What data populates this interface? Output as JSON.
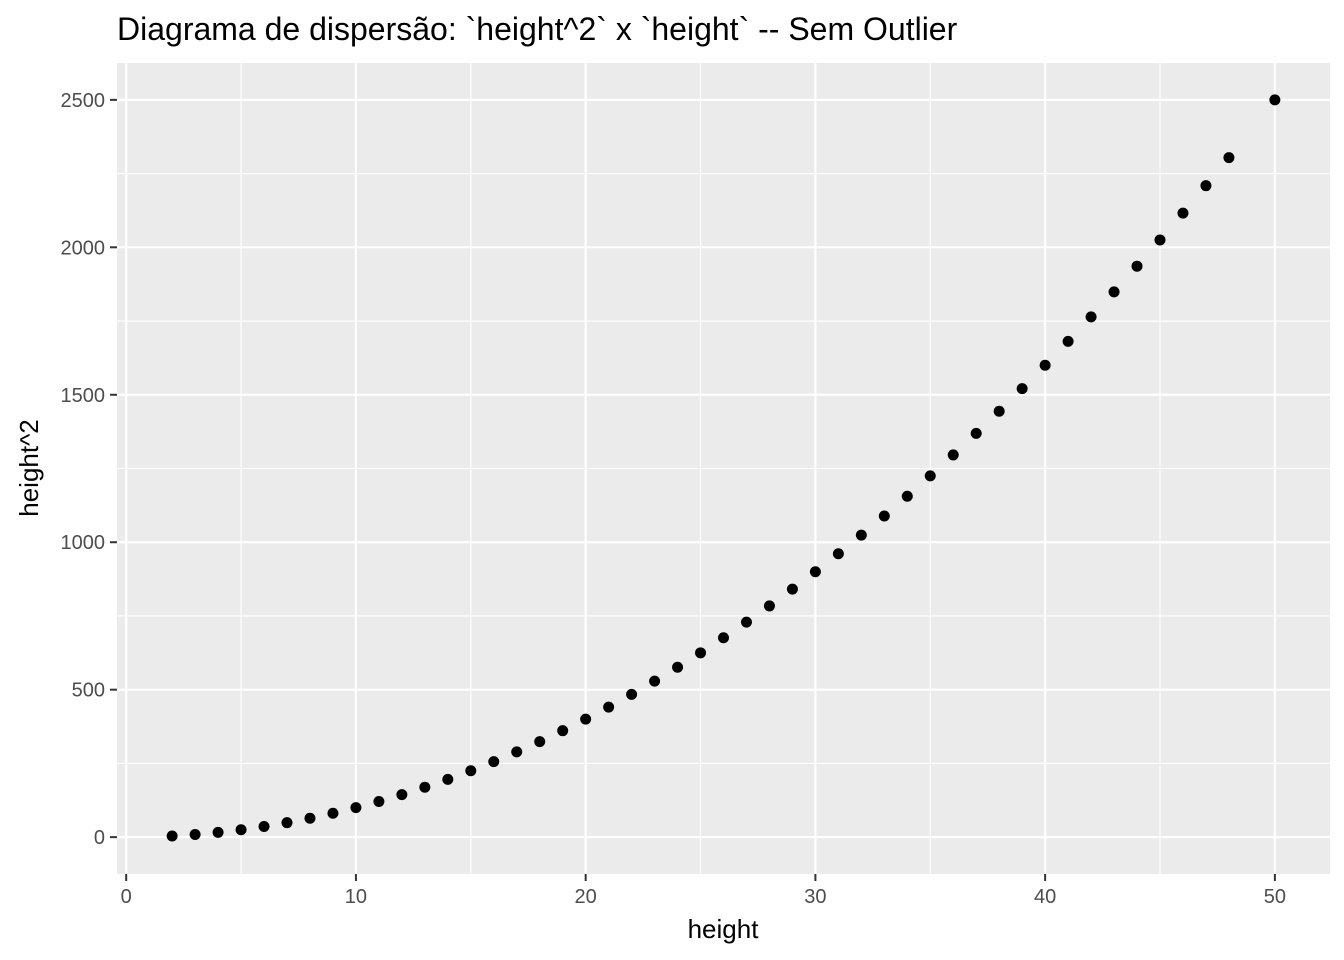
{
  "chart_data": {
    "type": "scatter",
    "title": "Diagrama de dispersão: `height^2` x `height` -- Sem Outlier",
    "xlabel": "height",
    "ylabel": "height^2",
    "xlim": [
      -0.4,
      52.4
    ],
    "ylim": [
      -125,
      2625
    ],
    "x_ticks": [
      {
        "value": 0,
        "label": "0"
      },
      {
        "value": 10,
        "label": "10"
      },
      {
        "value": 20,
        "label": "20"
      },
      {
        "value": 30,
        "label": "30"
      },
      {
        "value": 40,
        "label": "40"
      },
      {
        "value": 50,
        "label": "50"
      }
    ],
    "y_ticks": [
      {
        "value": 0,
        "label": "0"
      },
      {
        "value": 500,
        "label": "500"
      },
      {
        "value": 1000,
        "label": "1000"
      },
      {
        "value": 1500,
        "label": "1500"
      },
      {
        "value": 2000,
        "label": "2000"
      },
      {
        "value": 2500,
        "label": "2500"
      }
    ],
    "grid": true,
    "x_minor_breaks": [
      5,
      15,
      25,
      35,
      45
    ],
    "y_minor_breaks": [
      250,
      750,
      1250,
      1750,
      2250
    ],
    "colors": {
      "panel_background": "#ebebeb",
      "grid_line": "#ffffff",
      "point": "#000000",
      "tick_mark": "#333333"
    },
    "series": [
      {
        "x": [
          2,
          3,
          4,
          5,
          6,
          7,
          8,
          9,
          10,
          11,
          12,
          13,
          14,
          15,
          16,
          17,
          18,
          19,
          20,
          21,
          22,
          23,
          24,
          25,
          26,
          27,
          28,
          29,
          30,
          31,
          32,
          33,
          34,
          35,
          36,
          37,
          38,
          39,
          40,
          41,
          42,
          43,
          44,
          45,
          46,
          47,
          48,
          50
        ],
        "y": [
          4,
          9,
          16,
          25,
          36,
          49,
          64,
          81,
          100,
          121,
          144,
          169,
          196,
          225,
          256,
          289,
          324,
          361,
          400,
          441,
          484,
          529,
          576,
          625,
          676,
          729,
          784,
          841,
          900,
          961,
          1024,
          1089,
          1156,
          1225,
          1296,
          1369,
          1444,
          1521,
          1600,
          1681,
          1764,
          1849,
          1936,
          2025,
          2116,
          2209,
          2304,
          2500
        ]
      }
    ]
  }
}
